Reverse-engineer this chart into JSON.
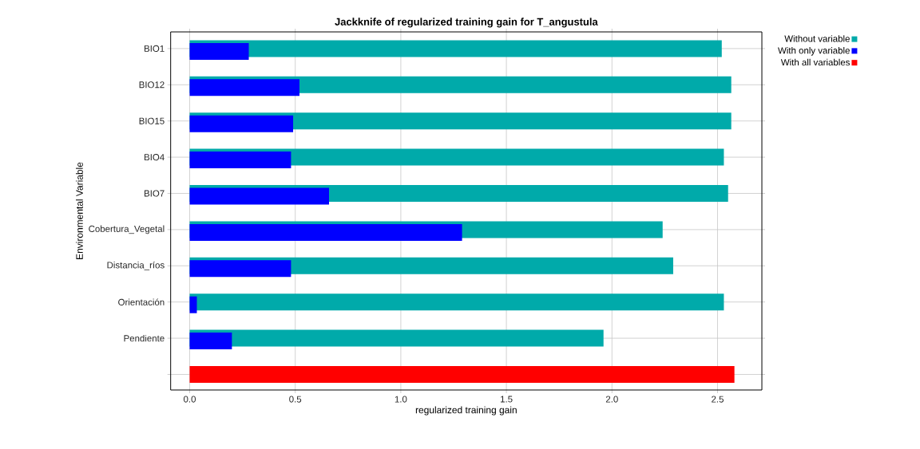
{
  "chart_data": {
    "type": "bar",
    "orientation": "horizontal",
    "title": "Jackknife of regularized training gain for T_angustula",
    "xlabel": "regularized training gain",
    "ylabel": "Environmental Variable",
    "categories": [
      "BIO1",
      "BIO12",
      "BIO15",
      "BIO4",
      "BIO7",
      "Cobertura_Vegetal",
      "Distancia_ríos",
      "Orientación",
      "Pendiente",
      null
    ],
    "series": [
      {
        "name": "Without variable",
        "color": "#00aaaa",
        "values": [
          2.52,
          2.565,
          2.565,
          2.53,
          2.55,
          2.24,
          2.29,
          2.53,
          1.96,
          null
        ]
      },
      {
        "name": "With only variable",
        "color": "#0000ff",
        "values": [
          0.28,
          0.52,
          0.49,
          0.48,
          0.66,
          1.29,
          0.48,
          0.034,
          0.2,
          null
        ]
      },
      {
        "name": "With all variables",
        "color": "#ff0000",
        "values": [
          null,
          null,
          null,
          null,
          null,
          null,
          null,
          null,
          null,
          2.58
        ]
      }
    ],
    "xlim": [
      -0.09,
      2.71
    ],
    "xticks": [
      {
        "value": 0,
        "label": "0.0"
      },
      {
        "value": 0.5,
        "label": "0.5"
      },
      {
        "value": 1,
        "label": "1.0"
      },
      {
        "value": 1.5,
        "label": "1.5"
      },
      {
        "value": 2,
        "label": "2.0"
      },
      {
        "value": 2.5,
        "label": "2.5"
      }
    ],
    "grid": true,
    "legend": "top right"
  }
}
